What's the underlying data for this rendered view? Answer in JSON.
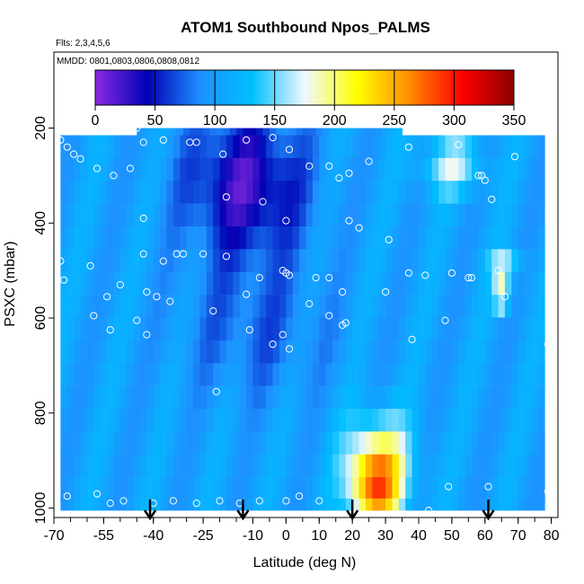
{
  "chart_data": {
    "type": "heatmap",
    "title": "ATOM1 Southbound Npos_PALMS",
    "flights_label": "Flts: 2,3,4,5,6",
    "dates_label": "MMDD: 0801,0803,0806,0808,0812",
    "xlabel": "Latitude (deg N)",
    "ylabel": "PSXC (mbar)",
    "xlim": [
      -70,
      82
    ],
    "ylim": [
      1020,
      40
    ],
    "y_reversed": true,
    "x_ticks": [
      -70,
      -55,
      -40,
      -25,
      -10,
      0,
      10,
      20,
      30,
      40,
      50,
      60,
      70,
      80
    ],
    "x_tick_labels": [
      "-70",
      "-55",
      "-40",
      "-25",
      "-10",
      "0",
      "10",
      "20",
      "30",
      "40",
      "50",
      "60",
      "70",
      "80"
    ],
    "y_ticks": [
      200,
      400,
      600,
      800,
      1000
    ],
    "y_tick_labels": [
      "200",
      "400",
      "600",
      "800",
      "1000"
    ],
    "colorbar": {
      "range": [
        0,
        350
      ],
      "ticks": [
        0,
        50,
        100,
        150,
        200,
        250,
        300,
        350
      ],
      "tick_labels": [
        "0",
        "50",
        "100",
        "150",
        "200",
        "250",
        "300",
        "350"
      ],
      "colors": [
        "#8a2be2",
        "#0000b4",
        "#1e90ff",
        "#00bfff",
        "#f0f8ff",
        "#ffff00",
        "#ff8c00",
        "#ff0000",
        "#8b0000"
      ]
    },
    "arrows_latitude": [
      -41,
      -13,
      20,
      61
    ],
    "grid": false,
    "legend": "top (colorbar)",
    "field_summary": "Npos values mostly 50-150 across latitudes; lowest (0-50) aloft 200-400 mbar between -25 and 5 deg N; highest (200-300) near surface 900-1000 mbar between 20 and 35 deg N and near 550 mbar at 65 deg N",
    "sample_points": [
      {
        "lat": -68,
        "p": 225
      },
      {
        "lat": -66,
        "p": 240
      },
      {
        "lat": -64,
        "p": 255
      },
      {
        "lat": -62,
        "p": 265
      },
      {
        "lat": -57,
        "p": 285
      },
      {
        "lat": -52,
        "p": 300
      },
      {
        "lat": -47,
        "p": 285
      },
      {
        "lat": -45,
        "p": 200
      },
      {
        "lat": -43,
        "p": 230
      },
      {
        "lat": -37,
        "p": 225
      },
      {
        "lat": -29,
        "p": 230
      },
      {
        "lat": -27,
        "p": 230
      },
      {
        "lat": -19,
        "p": 255
      },
      {
        "lat": -12,
        "p": 225
      },
      {
        "lat": -4,
        "p": 220
      },
      {
        "lat": 1,
        "p": 245
      },
      {
        "lat": 7,
        "p": 280
      },
      {
        "lat": 13,
        "p": 280
      },
      {
        "lat": 16,
        "p": 305
      },
      {
        "lat": 19,
        "p": 295
      },
      {
        "lat": 25,
        "p": 270
      },
      {
        "lat": 28,
        "p": 185
      },
      {
        "lat": 37,
        "p": 240
      },
      {
        "lat": 52,
        "p": 235
      },
      {
        "lat": 58,
        "p": 300
      },
      {
        "lat": 59,
        "p": 300
      },
      {
        "lat": 60,
        "p": 310
      },
      {
        "lat": 62,
        "p": 350
      },
      {
        "lat": 69,
        "p": 260
      },
      {
        "lat": -18,
        "p": 345
      },
      {
        "lat": -7,
        "p": 355
      },
      {
        "lat": -43,
        "p": 390
      },
      {
        "lat": 0,
        "p": 395
      },
      {
        "lat": 19,
        "p": 395
      },
      {
        "lat": 22,
        "p": 410
      },
      {
        "lat": 31,
        "p": 435
      },
      {
        "lat": -68,
        "p": 480
      },
      {
        "lat": -59,
        "p": 490
      },
      {
        "lat": -43,
        "p": 465
      },
      {
        "lat": -37,
        "p": 480
      },
      {
        "lat": -33,
        "p": 465
      },
      {
        "lat": -31,
        "p": 465
      },
      {
        "lat": -25,
        "p": 465
      },
      {
        "lat": -18,
        "p": 470
      },
      {
        "lat": -67,
        "p": 520
      },
      {
        "lat": -50,
        "p": 530
      },
      {
        "lat": -42,
        "p": 545
      },
      {
        "lat": -39,
        "p": 555
      },
      {
        "lat": -35,
        "p": 565
      },
      {
        "lat": -12,
        "p": 550
      },
      {
        "lat": -8,
        "p": 515
      },
      {
        "lat": -1,
        "p": 500
      },
      {
        "lat": 0,
        "p": 505
      },
      {
        "lat": 1,
        "p": 510
      },
      {
        "lat": 9,
        "p": 515
      },
      {
        "lat": 13,
        "p": 515
      },
      {
        "lat": 17,
        "p": 545
      },
      {
        "lat": 30,
        "p": 545
      },
      {
        "lat": 37,
        "p": 505
      },
      {
        "lat": 42,
        "p": 510
      },
      {
        "lat": 50,
        "p": 505
      },
      {
        "lat": 55,
        "p": 515
      },
      {
        "lat": 56,
        "p": 515
      },
      {
        "lat": 64,
        "p": 500
      },
      {
        "lat": 66,
        "p": 555
      },
      {
        "lat": -54,
        "p": 555
      },
      {
        "lat": -58,
        "p": 595
      },
      {
        "lat": -53,
        "p": 625
      },
      {
        "lat": -45,
        "p": 605
      },
      {
        "lat": -42,
        "p": 635
      },
      {
        "lat": -22,
        "p": 585
      },
      {
        "lat": -11,
        "p": 625
      },
      {
        "lat": -4,
        "p": 655
      },
      {
        "lat": -1,
        "p": 635
      },
      {
        "lat": 1,
        "p": 665
      },
      {
        "lat": 7,
        "p": 570
      },
      {
        "lat": 13,
        "p": 595
      },
      {
        "lat": 17,
        "p": 615
      },
      {
        "lat": 18,
        "p": 610
      },
      {
        "lat": 38,
        "p": 645
      },
      {
        "lat": 48,
        "p": 605
      },
      {
        "lat": 79,
        "p": 655
      },
      {
        "lat": -21,
        "p": 755
      },
      {
        "lat": 49,
        "p": 955
      },
      {
        "lat": 61,
        "p": 955
      },
      {
        "lat": -66,
        "p": 975
      },
      {
        "lat": -57,
        "p": 970
      },
      {
        "lat": -53,
        "p": 990
      },
      {
        "lat": -49,
        "p": 985
      },
      {
        "lat": -40,
        "p": 990
      },
      {
        "lat": -34,
        "p": 985
      },
      {
        "lat": -27,
        "p": 990
      },
      {
        "lat": -20,
        "p": 985
      },
      {
        "lat": -14,
        "p": 990
      },
      {
        "lat": -8,
        "p": 985
      },
      {
        "lat": 0,
        "p": 985
      },
      {
        "lat": 4,
        "p": 975
      },
      {
        "lat": 10,
        "p": 985
      },
      {
        "lat": 43,
        "p": 1005
      },
      {
        "lat": 79,
        "p": 965
      }
    ]
  }
}
